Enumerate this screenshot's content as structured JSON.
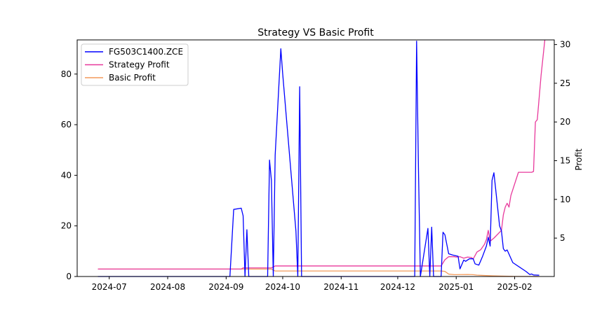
{
  "chart_data": {
    "type": "line",
    "title": "Strategy VS Basic Profit",
    "xlabel": "",
    "ylabel_left": "",
    "ylabel_right": "Profit",
    "x_ticks": [
      "2024-07",
      "2024-08",
      "2024-09",
      "2024-10",
      "2024-11",
      "2024-12",
      "2025-01",
      "2025-02"
    ],
    "y_left_ticks": [
      0,
      20,
      40,
      60,
      80
    ],
    "y_right_ticks": [
      5,
      10,
      15,
      20,
      25,
      30
    ],
    "ylim_left": [
      0,
      93.5
    ],
    "ylim_right": [
      0.04,
      30.6
    ],
    "xlim": [
      "2024-06-14",
      "2025-02-22"
    ],
    "legend": "top-left",
    "grid": false,
    "series": [
      {
        "name": "FG503C1400.ZCE",
        "axis": "left",
        "color": "#0000ff",
        "points": [
          [
            "2024-06-25",
            0
          ],
          [
            "2024-09-03",
            0
          ],
          [
            "2024-09-05",
            26.5
          ],
          [
            "2024-09-09",
            27
          ],
          [
            "2024-09-10",
            24
          ],
          [
            "2024-09-11",
            0
          ],
          [
            "2024-09-12",
            18.5
          ],
          [
            "2024-09-13",
            0
          ],
          [
            "2024-09-23",
            0
          ],
          [
            "2024-09-24",
            46
          ],
          [
            "2024-09-25",
            38
          ],
          [
            "2024-09-26",
            0
          ],
          [
            "2024-09-27",
            48
          ],
          [
            "2024-09-30",
            90
          ],
          [
            "2024-10-01",
            80
          ],
          [
            "2024-10-08",
            18
          ],
          [
            "2024-10-09",
            0
          ],
          [
            "2024-10-10",
            75
          ],
          [
            "2024-10-11",
            0
          ],
          [
            "2024-12-10",
            0
          ],
          [
            "2024-12-11",
            93
          ],
          [
            "2024-12-12",
            42
          ],
          [
            "2024-12-13",
            0
          ],
          [
            "2024-12-17",
            19
          ],
          [
            "2024-12-18",
            0
          ],
          [
            "2024-12-19",
            19.5
          ],
          [
            "2024-12-20",
            0
          ],
          [
            "2024-12-24",
            0
          ],
          [
            "2024-12-25",
            17.5
          ],
          [
            "2024-12-26",
            16.5
          ],
          [
            "2024-12-28",
            9
          ],
          [
            "2024-12-30",
            8.5
          ],
          [
            "2025-01-02",
            8
          ],
          [
            "2025-01-03",
            3
          ],
          [
            "2025-01-05",
            6.5
          ],
          [
            "2025-01-06",
            6
          ],
          [
            "2025-01-08",
            7
          ],
          [
            "2025-01-10",
            7
          ],
          [
            "2025-01-11",
            5
          ],
          [
            "2025-01-13",
            4.5
          ],
          [
            "2025-01-15",
            8
          ],
          [
            "2025-01-17",
            12
          ],
          [
            "2025-01-18",
            15.5
          ],
          [
            "2025-01-19",
            12
          ],
          [
            "2025-01-20",
            38
          ],
          [
            "2025-01-21",
            41
          ],
          [
            "2025-01-24",
            20
          ],
          [
            "2025-01-25",
            18
          ],
          [
            "2025-01-26",
            11
          ],
          [
            "2025-01-27",
            10
          ],
          [
            "2025-01-28",
            10.5
          ],
          [
            "2025-01-31",
            5.5
          ],
          [
            "2025-02-07",
            2
          ],
          [
            "2025-02-09",
            0.8
          ],
          [
            "2025-02-10",
            1
          ],
          [
            "2025-02-11",
            0.6
          ],
          [
            "2025-02-14",
            0.5
          ]
        ]
      },
      {
        "name": "Strategy Profit",
        "axis": "right",
        "color": "#e8399c",
        "points": [
          [
            "2024-06-25",
            1.0
          ],
          [
            "2024-09-09",
            1.0
          ],
          [
            "2024-09-10",
            1.15
          ],
          [
            "2024-09-25",
            1.15
          ],
          [
            "2024-09-27",
            1.4
          ],
          [
            "2024-12-24",
            1.4
          ],
          [
            "2024-12-26",
            2.2
          ],
          [
            "2024-12-28",
            2.6
          ],
          [
            "2024-12-31",
            2.6
          ],
          [
            "2025-01-01",
            2.55
          ],
          [
            "2025-01-03",
            2.6
          ],
          [
            "2025-01-05",
            2.4
          ],
          [
            "2025-01-07",
            2.55
          ],
          [
            "2025-01-09",
            2.5
          ],
          [
            "2025-01-10",
            2.3
          ],
          [
            "2025-01-12",
            3.2
          ],
          [
            "2025-01-14",
            3.5
          ],
          [
            "2025-01-16",
            4.2
          ],
          [
            "2025-01-17",
            4.8
          ],
          [
            "2025-01-18",
            6.0
          ],
          [
            "2025-01-19",
            4.6
          ],
          [
            "2025-01-21",
            5.0
          ],
          [
            "2025-01-23",
            5.5
          ],
          [
            "2025-01-25",
            6.0
          ],
          [
            "2025-01-26",
            8.0
          ],
          [
            "2025-01-27",
            9.0
          ],
          [
            "2025-01-28",
            9.5
          ],
          [
            "2025-01-29",
            9.0
          ],
          [
            "2025-01-30",
            10.5
          ],
          [
            "2025-02-03",
            13.5
          ],
          [
            "2025-02-07",
            13.5
          ],
          [
            "2025-02-10",
            13.5
          ],
          [
            "2025-02-11",
            13.6
          ],
          [
            "2025-02-12",
            20.0
          ],
          [
            "2025-02-13",
            20.3
          ],
          [
            "2025-02-15",
            26.0
          ],
          [
            "2025-02-17",
            30.6
          ]
        ]
      },
      {
        "name": "Basic Profit",
        "axis": "right",
        "color": "#f39a5a",
        "points": [
          [
            "2024-06-25",
            1.0
          ],
          [
            "2024-09-25",
            1.0
          ],
          [
            "2024-09-27",
            0.75
          ],
          [
            "2024-12-24",
            0.75
          ],
          [
            "2024-12-26",
            0.7
          ],
          [
            "2024-12-28",
            0.35
          ],
          [
            "2024-12-31",
            0.28
          ],
          [
            "2025-01-07",
            0.3
          ],
          [
            "2025-01-10",
            0.28
          ],
          [
            "2025-01-12",
            0.22
          ],
          [
            "2025-01-15",
            0.18
          ],
          [
            "2025-01-20",
            0.13
          ],
          [
            "2025-01-25",
            0.1
          ],
          [
            "2025-01-31",
            0.06
          ],
          [
            "2025-02-10",
            0.05
          ],
          [
            "2025-02-14",
            0.04
          ]
        ]
      }
    ]
  }
}
